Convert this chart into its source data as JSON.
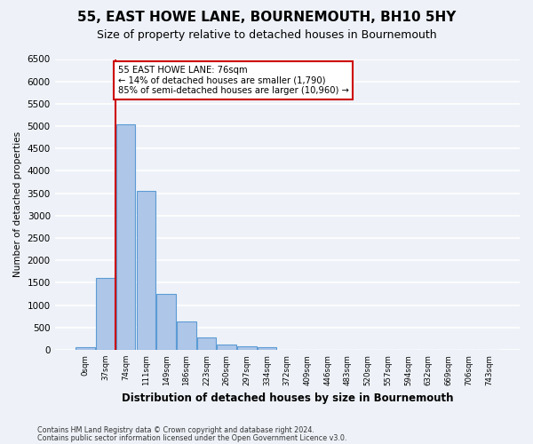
{
  "title1": "55, EAST HOWE LANE, BOURNEMOUTH, BH10 5HY",
  "title2": "Size of property relative to detached houses in Bournemouth",
  "xlabel": "Distribution of detached houses by size in Bournemouth",
  "ylabel": "Number of detached properties",
  "bin_labels": [
    "0sqm",
    "37sqm",
    "74sqm",
    "111sqm",
    "149sqm",
    "186sqm",
    "223sqm",
    "260sqm",
    "297sqm",
    "334sqm",
    "372sqm",
    "409sqm",
    "446sqm",
    "483sqm",
    "520sqm",
    "557sqm",
    "594sqm",
    "632sqm",
    "669sqm",
    "706sqm",
    "743sqm"
  ],
  "bar_values": [
    60,
    1600,
    5050,
    3560,
    1250,
    630,
    270,
    120,
    70,
    50,
    0,
    0,
    0,
    0,
    0,
    0,
    0,
    0,
    0,
    0,
    0
  ],
  "bar_color": "#aec6e8",
  "bar_edge_color": "#5b9bd5",
  "property_line_color": "#cc0000",
  "annotation_text": "55 EAST HOWE LANE: 76sqm\n← 14% of detached houses are smaller (1,790)\n85% of semi-detached houses are larger (10,960) →",
  "annotation_box_color": "#ffffff",
  "annotation_box_edge": "#cc0000",
  "ylim": [
    0,
    6500
  ],
  "yticks": [
    0,
    500,
    1000,
    1500,
    2000,
    2500,
    3000,
    3500,
    4000,
    4500,
    5000,
    5500,
    6000,
    6500
  ],
  "footer1": "Contains HM Land Registry data © Crown copyright and database right 2024.",
  "footer2": "Contains public sector information licensed under the Open Government Licence v3.0.",
  "bg_color": "#eef2f8",
  "grid_color": "#ffffff",
  "title1_fontsize": 11,
  "title2_fontsize": 9
}
